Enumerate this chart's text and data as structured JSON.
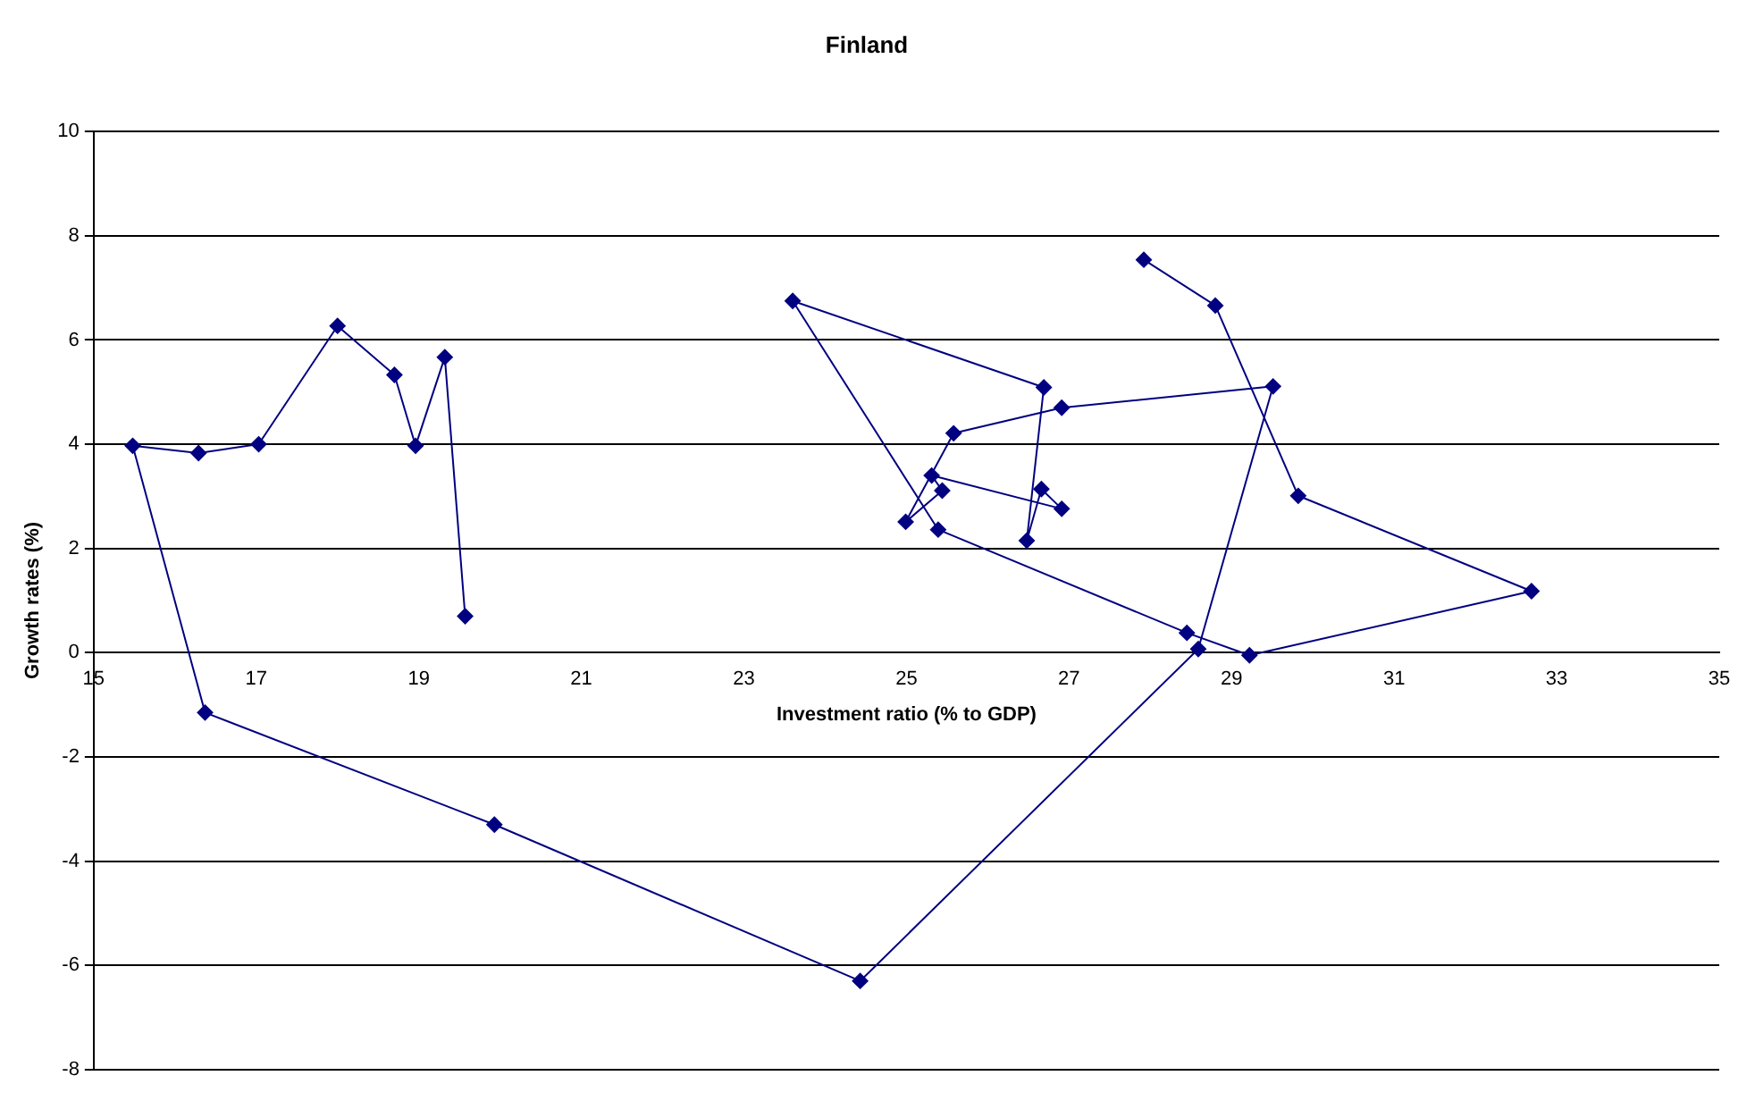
{
  "chart_data": {
    "type": "line",
    "title": "Finland",
    "xlabel": "Investment ratio (% to GDP)",
    "ylabel": "Growth rates (%)",
    "x": [
      27.92,
      28.8,
      29.82,
      32.69,
      29.22,
      28.45,
      25.39,
      23.6,
      26.69,
      26.48,
      26.66,
      26.91,
      25.31,
      25.44,
      24.99,
      25.58,
      26.91,
      29.51,
      28.59,
      24.43,
      19.93,
      16.37,
      15.48,
      16.29,
      17.03,
      18.0,
      18.7,
      18.96,
      19.32,
      19.57
    ],
    "series": [
      {
        "color": "#000080",
        "values": [
          7.54,
          6.66,
          3.01,
          1.18,
          -0.05,
          0.38,
          2.36,
          6.75,
          5.09,
          2.15,
          3.14,
          2.76,
          3.4,
          3.11,
          2.51,
          4.21,
          4.7,
          5.11,
          0.07,
          -6.3,
          -3.3,
          -1.15,
          3.97,
          3.83,
          4.0,
          6.27,
          5.33,
          3.97,
          5.67,
          0.7
        ]
      }
    ],
    "xlim": [
      15,
      35
    ],
    "xticks": [
      15,
      17,
      19,
      21,
      23,
      25,
      27,
      29,
      31,
      33,
      35
    ],
    "ylim": [
      -8,
      10
    ],
    "yticks": [
      -8,
      -6,
      -4,
      -2,
      0,
      2,
      4,
      6,
      8,
      10
    ],
    "grid": "y",
    "legend": false,
    "marker": "diamond",
    "line_style": "solid"
  }
}
